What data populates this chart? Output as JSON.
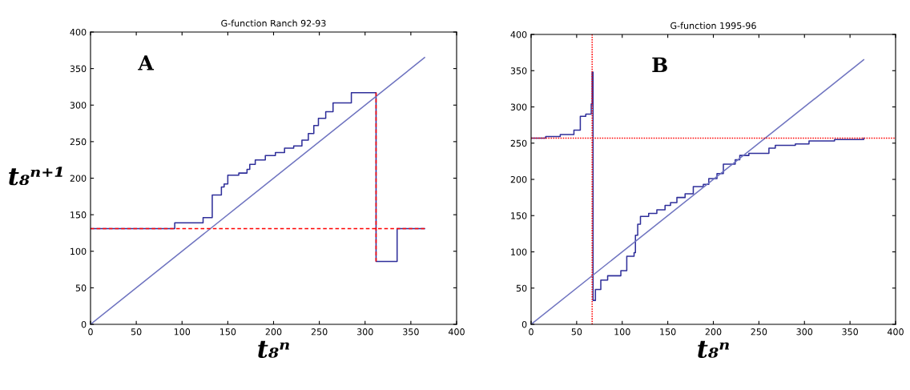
{
  "chart_data": [
    {
      "type": "step",
      "title": "G-function Ranch 92-93",
      "xlabel": "t₈ⁿ",
      "ylabel": "t₈ⁿ⁺¹",
      "annotations": [
        "A"
      ],
      "xlim": [
        0,
        400
      ],
      "ylim": [
        0,
        400
      ],
      "xticks": [
        0,
        50,
        100,
        150,
        200,
        250,
        300,
        350,
        400
      ],
      "yticks": [
        0,
        50,
        100,
        150,
        200,
        250,
        300,
        350,
        400
      ],
      "grid": false,
      "legend": false,
      "series": [
        {
          "color": "#2f2f9a",
          "x": [
            0,
            92,
            123,
            133,
            143,
            146,
            150,
            162,
            171,
            174,
            180,
            191,
            202,
            212,
            222,
            231,
            238,
            244,
            249,
            257,
            265,
            285,
            312,
            335,
            365
          ],
          "values": [
            131,
            139,
            146,
            177,
            188,
            192,
            204,
            207,
            212,
            219,
            225,
            231,
            235,
            241,
            244,
            252,
            261,
            272,
            282,
            291,
            303,
            317,
            86,
            131,
            131
          ]
        },
        {
          "type": "line",
          "color": "#6f74c0",
          "x": [
            0,
            365
          ],
          "values": [
            0,
            365
          ]
        },
        {
          "type": "line",
          "color": "#ff0000",
          "line_style": "dashed",
          "x": [
            0,
            365
          ],
          "values": [
            131,
            131
          ]
        },
        {
          "type": "line",
          "color": "#ff0000",
          "line_style": "dashed",
          "x": [
            312,
            312
          ],
          "values": [
            86,
            317
          ]
        }
      ]
    },
    {
      "type": "step",
      "title": "G-function 1995-96",
      "xlabel": "t₈ⁿ",
      "annotations": [
        "B"
      ],
      "xlim": [
        0,
        400
      ],
      "ylim": [
        0,
        400
      ],
      "xticks": [
        0,
        50,
        100,
        150,
        200,
        250,
        300,
        350,
        400
      ],
      "yticks": [
        0,
        50,
        100,
        150,
        200,
        250,
        300,
        350,
        400
      ],
      "grid": false,
      "legend": false,
      "series": [
        {
          "color": "#2f2f9a",
          "x": [
            0,
            16,
            32,
            47,
            54,
            60,
            66,
            67,
            68,
            70.6,
            76.5,
            84,
            98.5,
            105,
            113,
            114.5,
            117,
            120,
            129,
            138,
            147,
            153,
            160,
            169,
            178,
            189,
            195,
            204,
            211,
            224,
            229,
            239,
            261,
            268,
            290,
            305,
            333,
            365
          ],
          "values": [
            257,
            259,
            262,
            268,
            287,
            290,
            304,
            348,
            33,
            48,
            61,
            67,
            74,
            94,
            99,
            123,
            138,
            149,
            153,
            158,
            164,
            168,
            175,
            180,
            190,
            193,
            201,
            208,
            221,
            227,
            233,
            236,
            243,
            247,
            249,
            253,
            255,
            257
          ]
        },
        {
          "type": "line",
          "color": "#6f74c0",
          "x": [
            0,
            365
          ],
          "values": [
            0,
            365
          ]
        },
        {
          "type": "line",
          "color": "#ff0000",
          "line_style": "dotted",
          "x": [
            0,
            400
          ],
          "values": [
            257,
            257
          ]
        },
        {
          "type": "line",
          "color": "#ff0000",
          "line_style": "dotted",
          "x": [
            67,
            67
          ],
          "values": [
            0,
            400
          ]
        }
      ]
    }
  ]
}
